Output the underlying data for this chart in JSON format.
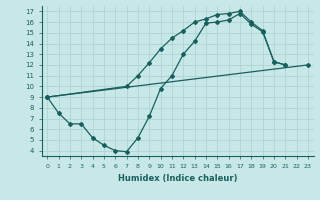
{
  "xlabel": "Humidex (Indice chaleur)",
  "bg_color": "#c8e8e8",
  "grid_color": "#a8d0d0",
  "line_color": "#1a5f5f",
  "xlim": [
    -0.5,
    23.5
  ],
  "ylim": [
    3.5,
    17.5
  ],
  "xticks": [
    0,
    1,
    2,
    3,
    4,
    5,
    6,
    7,
    8,
    9,
    10,
    11,
    12,
    13,
    14,
    15,
    16,
    17,
    18,
    19,
    20,
    21,
    22,
    23
  ],
  "yticks": [
    4,
    5,
    6,
    7,
    8,
    9,
    10,
    11,
    12,
    13,
    14,
    15,
    16,
    17
  ],
  "line1_x": [
    0,
    1,
    2,
    3,
    4,
    5,
    6,
    7,
    8,
    9,
    10,
    11,
    12,
    13,
    14,
    15,
    16,
    17,
    18,
    19,
    20,
    21
  ],
  "line1_y": [
    9,
    7.5,
    6.5,
    6.5,
    5.2,
    4.5,
    4.0,
    3.9,
    5.2,
    7.2,
    9.8,
    11.0,
    13.0,
    14.2,
    15.9,
    16.0,
    16.2,
    16.8,
    15.8,
    15.1,
    12.3,
    12.0
  ],
  "line2_x": [
    0,
    7,
    8,
    9,
    10,
    11,
    12,
    13,
    14,
    15,
    16,
    17,
    18,
    19,
    20,
    21
  ],
  "line2_y": [
    9,
    10.0,
    11.0,
    12.2,
    13.5,
    14.5,
    15.2,
    16.0,
    16.3,
    16.7,
    16.8,
    17.0,
    16.0,
    15.2,
    12.3,
    12.0
  ],
  "line3_x": [
    0,
    23
  ],
  "line3_y": [
    9,
    12.0
  ]
}
